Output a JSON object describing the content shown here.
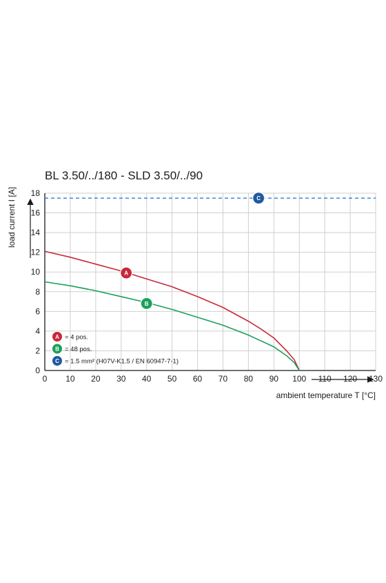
{
  "chart_data": {
    "type": "line",
    "title": "BL 3.50/../180 - SLD 3.50/../90",
    "xlabel": "ambient temperature T [°C]",
    "ylabel": "load current I [A]",
    "xlim": [
      0,
      130
    ],
    "ylim": [
      0,
      18
    ],
    "xticks": [
      0,
      10,
      20,
      30,
      40,
      50,
      60,
      70,
      80,
      90,
      100,
      110,
      120,
      130
    ],
    "yticks": [
      0,
      2,
      4,
      6,
      8,
      10,
      12,
      14,
      16,
      18
    ],
    "grid": true,
    "series": [
      {
        "key": "A",
        "color": "#c8283a",
        "x": [
          0,
          10,
          20,
          30,
          40,
          50,
          60,
          70,
          80,
          85,
          90,
          95,
          98,
          100
        ],
        "y": [
          12.1,
          11.5,
          10.8,
          10.1,
          9.3,
          8.5,
          7.5,
          6.4,
          5.0,
          4.2,
          3.3,
          2.0,
          1.1,
          0
        ]
      },
      {
        "key": "B",
        "color": "#1aa05a",
        "x": [
          0,
          10,
          20,
          30,
          40,
          50,
          60,
          70,
          80,
          85,
          90,
          95,
          98,
          100
        ],
        "y": [
          9.0,
          8.6,
          8.1,
          7.5,
          6.9,
          6.2,
          5.4,
          4.6,
          3.6,
          3.0,
          2.4,
          1.5,
          0.8,
          0
        ]
      },
      {
        "key": "C",
        "color": "#2f7bd6",
        "style": "dashed",
        "x": [
          0,
          130
        ],
        "y": [
          17.5,
          17.5
        ]
      }
    ],
    "markers": [
      {
        "label": "A",
        "x": 32,
        "y": 9.9,
        "color": "#c8283a"
      },
      {
        "label": "B",
        "x": 40,
        "y": 6.8,
        "color": "#1aa05a"
      },
      {
        "label": "C",
        "x": 84,
        "y": 17.5,
        "color": "#1f5aa0"
      }
    ],
    "legend": {
      "placement": "bottom-left",
      "entries": [
        {
          "label": "A",
          "text": "= 4 pos.",
          "color": "#c8283a"
        },
        {
          "label": "B",
          "text": "= 48 pos.",
          "color": "#1aa05a"
        },
        {
          "label": "C",
          "text": "= 1.5 mm² (H07V-K1.5 / EN 60947-7-1)",
          "color": "#1f5aa0"
        }
      ]
    }
  }
}
